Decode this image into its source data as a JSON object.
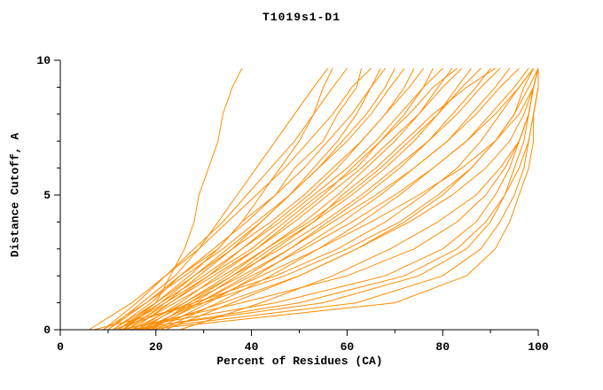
{
  "chart_data": {
    "type": "line",
    "title": "T1019s1-D1",
    "xlabel": "Percent of Residues (CA)",
    "ylabel": "Distance Cutoff, A",
    "xlim": [
      0,
      100
    ],
    "ylim": [
      0,
      10
    ],
    "x_major_ticks": [
      0,
      20,
      40,
      60,
      80,
      100
    ],
    "x_minor_ticks": [
      10,
      30,
      50,
      70,
      90
    ],
    "y_major_ticks": [
      0,
      5,
      10
    ],
    "y_minor_ticks": [
      1,
      2,
      3,
      4,
      6,
      7,
      8,
      9
    ],
    "grid": false,
    "legend": "none",
    "axis_color": "#000000",
    "series_color": "#FF8C00",
    "background_color": "#FFFFFF",
    "y_points": [
      0,
      1,
      2,
      3,
      4,
      5,
      6,
      7,
      8,
      9,
      9.7
    ],
    "series_x_at_y": [
      [
        13,
        20,
        23,
        26,
        28,
        29,
        31,
        33,
        34,
        36,
        38
      ],
      [
        10,
        17,
        24,
        29,
        33,
        37,
        41,
        45,
        49,
        53,
        56
      ],
      [
        12,
        20,
        27,
        33,
        38,
        42,
        46,
        50,
        53,
        55,
        57
      ],
      [
        9,
        16,
        22,
        28,
        34,
        39,
        44,
        49,
        53,
        57,
        60
      ],
      [
        11,
        19,
        25,
        33,
        38,
        45,
        49,
        55,
        58,
        62,
        63
      ],
      [
        6,
        15,
        22,
        29,
        35,
        41,
        47,
        52,
        57,
        61,
        65
      ],
      [
        14,
        22,
        29,
        36,
        42,
        48,
        53,
        58,
        62,
        65,
        67
      ],
      [
        10,
        18,
        25,
        32,
        39,
        45,
        51,
        56,
        61,
        65,
        68
      ],
      [
        13,
        21,
        28,
        35,
        42,
        48,
        54,
        59,
        64,
        68,
        70
      ],
      [
        9,
        18,
        26,
        34,
        41,
        48,
        54,
        60,
        65,
        69,
        72
      ],
      [
        15,
        23,
        31,
        38,
        45,
        52,
        58,
        63,
        68,
        72,
        74
      ],
      [
        11,
        20,
        28,
        36,
        44,
        51,
        57,
        63,
        68,
        73,
        76
      ],
      [
        16,
        25,
        33,
        41,
        48,
        55,
        61,
        67,
        72,
        76,
        78
      ],
      [
        12,
        21,
        30,
        38,
        46,
        53,
        60,
        66,
        71,
        76,
        80
      ],
      [
        17,
        26,
        35,
        43,
        51,
        58,
        64,
        70,
        75,
        79,
        82
      ],
      [
        13,
        23,
        32,
        41,
        49,
        56,
        63,
        69,
        75,
        80,
        84
      ],
      [
        18,
        28,
        37,
        45,
        53,
        61,
        68,
        74,
        79,
        83,
        86
      ],
      [
        14,
        24,
        34,
        43,
        52,
        60,
        67,
        73,
        79,
        84,
        88
      ],
      [
        19,
        29,
        39,
        48,
        56,
        64,
        71,
        77,
        82,
        87,
        90
      ],
      [
        15,
        26,
        36,
        46,
        55,
        63,
        70,
        77,
        83,
        88,
        92
      ],
      [
        20,
        31,
        41,
        50,
        59,
        67,
        74,
        81,
        86,
        91,
        94
      ],
      [
        16,
        27,
        38,
        48,
        57,
        66,
        74,
        81,
        87,
        92,
        96
      ],
      [
        21,
        33,
        44,
        54,
        63,
        71,
        78,
        85,
        90,
        95,
        98
      ],
      [
        17,
        29,
        40,
        51,
        61,
        70,
        78,
        85,
        91,
        96,
        99
      ],
      [
        18,
        30,
        42,
        54,
        65,
        75,
        84,
        91,
        96,
        99,
        100
      ],
      [
        22,
        36,
        50,
        62,
        73,
        82,
        89,
        94,
        97,
        99,
        100
      ],
      [
        14,
        55,
        75,
        85,
        90,
        93,
        95,
        97,
        98,
        99,
        100
      ],
      [
        16,
        62,
        80,
        88,
        92,
        95,
        97,
        98,
        99,
        100,
        100
      ],
      [
        12,
        45,
        68,
        80,
        87,
        91,
        94,
        96,
        98,
        99,
        100
      ],
      [
        18,
        70,
        85,
        91,
        94,
        96,
        98,
        99,
        99,
        100,
        100
      ],
      [
        13,
        38,
        60,
        74,
        83,
        89,
        93,
        96,
        98,
        99,
        100
      ],
      [
        15,
        50,
        72,
        83,
        89,
        93,
        96,
        98,
        99,
        100,
        100
      ],
      [
        11,
        28,
        45,
        58,
        68,
        76,
        83,
        88,
        92,
        96,
        99
      ],
      [
        17,
        34,
        50,
        62,
        72,
        80,
        86,
        91,
        95,
        97,
        99
      ],
      [
        25,
        42,
        57,
        69,
        79,
        87,
        92,
        96,
        98,
        99,
        100
      ],
      [
        7,
        30,
        47,
        60,
        71,
        79,
        86,
        91,
        95,
        98,
        100
      ],
      [
        12,
        22,
        31,
        40,
        47,
        54,
        62,
        67,
        73,
        78,
        83
      ],
      [
        19,
        27,
        36,
        44,
        53,
        59,
        66,
        72,
        78,
        85,
        91
      ]
    ]
  }
}
